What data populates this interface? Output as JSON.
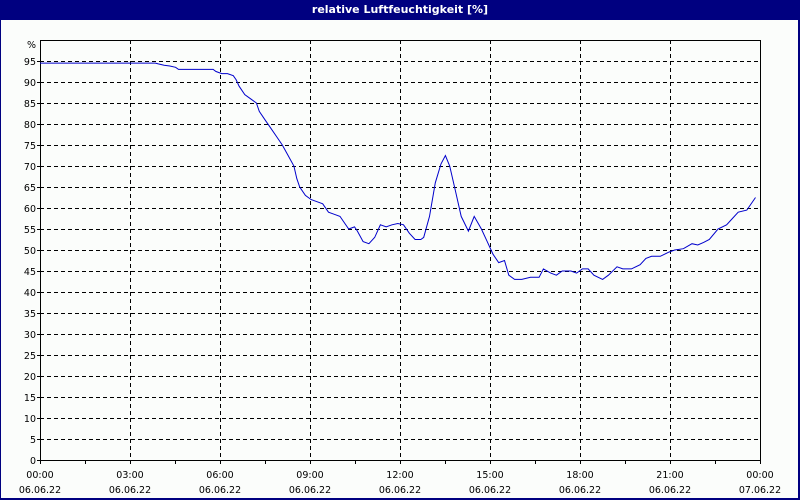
{
  "window": {
    "title": "relative Luftfeuchtigkeit [%]"
  },
  "chart_data": {
    "type": "line",
    "title": "relative Luftfeuchtigkeit [%]",
    "xlabel": "",
    "ylabel": "%",
    "ylim": [
      0,
      96
    ],
    "xlim_hours": [
      0,
      24
    ],
    "grid": true,
    "y_ticks": [
      0,
      5,
      10,
      15,
      20,
      25,
      30,
      35,
      40,
      45,
      50,
      55,
      60,
      65,
      70,
      75,
      80,
      85,
      90,
      95
    ],
    "y_unit_label": "%",
    "x_ticks": [
      {
        "h": 0,
        "time": "00:00",
        "date": "06.06.22"
      },
      {
        "h": 3,
        "time": "03:00",
        "date": "06.06.22"
      },
      {
        "h": 6,
        "time": "06:00",
        "date": "06.06.22"
      },
      {
        "h": 9,
        "time": "09:00",
        "date": "06.06.22"
      },
      {
        "h": 12,
        "time": "12:00",
        "date": "06.06.22"
      },
      {
        "h": 15,
        "time": "15:00",
        "date": "06.06.22"
      },
      {
        "h": 18,
        "time": "18:00",
        "date": "06.06.22"
      },
      {
        "h": 21,
        "time": "21:00",
        "date": "06.06.22"
      },
      {
        "h": 24,
        "time": "00:00",
        "date": "07.06.22"
      }
    ],
    "series": [
      {
        "name": "relative Luftfeuchtigkeit",
        "color": "#0000cc",
        "points": [
          [
            0,
            94.5
          ],
          [
            1,
            94.5
          ],
          [
            2,
            94.5
          ],
          [
            3,
            94.5
          ],
          [
            4,
            94.5
          ],
          [
            4.1,
            94.3
          ],
          [
            4.3,
            94
          ],
          [
            4.5,
            93.8
          ],
          [
            4.7,
            93.5
          ],
          [
            4.8,
            93
          ],
          [
            5.2,
            93
          ],
          [
            5.6,
            93
          ],
          [
            6,
            93
          ],
          [
            6.1,
            92.5
          ],
          [
            6.3,
            92
          ],
          [
            6.5,
            92
          ],
          [
            6.7,
            91.5
          ],
          [
            6.8,
            90.5
          ],
          [
            6.9,
            89
          ],
          [
            7.1,
            87
          ],
          [
            7.3,
            86
          ],
          [
            7.5,
            85
          ],
          [
            7.6,
            83
          ],
          [
            7.8,
            81
          ],
          [
            8,
            79
          ],
          [
            8.2,
            77
          ],
          [
            8.4,
            75
          ],
          [
            8.6,
            72.5
          ],
          [
            8.8,
            70
          ],
          [
            8.9,
            67
          ],
          [
            9,
            65
          ],
          [
            9.2,
            63
          ],
          [
            9.4,
            62
          ],
          [
            9.6,
            61.5
          ],
          [
            9.8,
            61
          ],
          [
            10,
            59
          ],
          [
            10.2,
            58.5
          ],
          [
            10.4,
            58
          ],
          [
            10.5,
            57
          ],
          [
            10.7,
            55
          ],
          [
            10.9,
            55.5
          ],
          [
            11,
            54.5
          ],
          [
            11.2,
            52
          ],
          [
            11.4,
            51.5
          ],
          [
            11.6,
            53
          ],
          [
            11.8,
            56
          ],
          [
            12,
            55.5
          ],
          [
            12.2,
            56
          ],
          [
            12.4,
            56.3
          ],
          [
            12.6,
            56
          ],
          [
            12.8,
            54
          ],
          [
            13,
            52.5
          ],
          [
            13.2,
            52.5
          ],
          [
            13.3,
            53
          ],
          [
            13.5,
            58
          ],
          [
            13.7,
            66
          ],
          [
            13.9,
            70.5
          ],
          [
            14.05,
            72.5
          ],
          [
            14.2,
            70
          ],
          [
            14.4,
            64
          ],
          [
            14.6,
            58
          ],
          [
            14.85,
            54.5
          ],
          [
            15.05,
            58
          ],
          [
            15.3,
            55
          ],
          [
            15.5,
            52
          ],
          [
            15.7,
            49
          ],
          [
            15.9,
            47
          ],
          [
            16.1,
            47.5
          ],
          [
            16.25,
            44
          ],
          [
            16.45,
            43
          ],
          [
            16.7,
            43
          ],
          [
            17,
            43.5
          ],
          [
            17.3,
            43.5
          ],
          [
            17.45,
            45.5
          ],
          [
            17.7,
            44.5
          ],
          [
            17.9,
            44
          ],
          [
            18.1,
            45
          ],
          [
            18.4,
            45
          ],
          [
            18.6,
            44.5
          ],
          [
            18.8,
            45.5
          ],
          [
            19,
            45.5
          ],
          [
            19.2,
            44
          ],
          [
            19.5,
            43
          ],
          [
            19.7,
            44
          ],
          [
            20,
            46
          ],
          [
            20.2,
            45.5
          ],
          [
            20.5,
            45.5
          ],
          [
            20.8,
            46.5
          ],
          [
            21.0,
            48
          ],
          [
            21.2,
            48.5
          ],
          [
            21.5,
            48.5
          ],
          [
            21.8,
            49.5
          ],
          [
            22,
            50
          ],
          [
            22.3,
            50.3
          ],
          [
            22.6,
            51.5
          ],
          [
            22.8,
            51.2
          ],
          [
            23.0,
            51.8
          ],
          [
            23.2,
            52.5
          ],
          [
            23.5,
            55
          ],
          [
            23.8,
            56
          ],
          [
            24.0,
            57.5
          ],
          [
            24.2,
            59
          ],
          [
            24.5,
            59.5
          ],
          [
            24.8,
            62.5
          ]
        ]
      }
    ]
  }
}
